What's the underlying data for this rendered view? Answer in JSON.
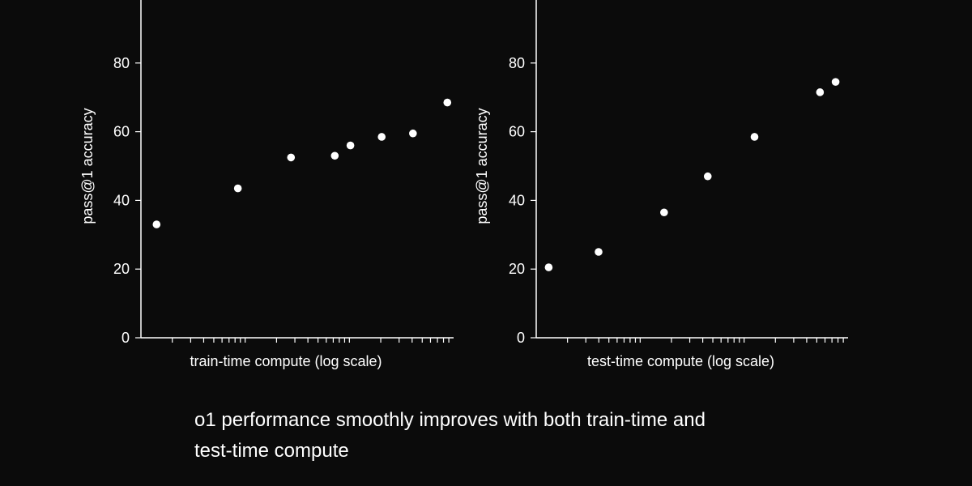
{
  "caption": "o1 performance smoothly improves with both train-time and test-time compute",
  "colors": {
    "background": "#0b0b0b",
    "foreground": "#ffffff"
  },
  "chart_data": [
    {
      "type": "scatter",
      "xlabel": "train-time compute (log scale)",
      "ylabel": "pass@1 accuracy",
      "xscale": "log",
      "ylim": [
        0,
        100
      ],
      "yticks": [
        0,
        20,
        40,
        60,
        80
      ],
      "grid": false,
      "legend": "none",
      "series": [
        {
          "x": [
            0.05,
            0.31,
            0.48,
            0.62,
            0.67,
            0.77,
            0.87,
            0.98
          ],
          "values": [
            33,
            43.5,
            52.5,
            53,
            56,
            58.5,
            59.5,
            68.5
          ]
        }
      ]
    },
    {
      "type": "scatter",
      "xlabel": "test-time compute (log scale)",
      "ylabel": "pass@1 accuracy",
      "xscale": "log",
      "ylim": [
        0,
        100
      ],
      "yticks": [
        0,
        20,
        40,
        60,
        80
      ],
      "grid": false,
      "legend": "none",
      "series": [
        {
          "x": [
            0.04,
            0.2,
            0.41,
            0.55,
            0.7,
            0.91,
            0.96
          ],
          "values": [
            20.5,
            25,
            36.5,
            47,
            58.5,
            71.5,
            74.5
          ]
        }
      ]
    }
  ]
}
